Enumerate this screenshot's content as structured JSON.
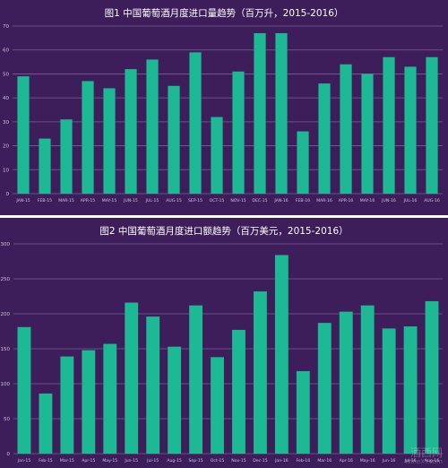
{
  "colors": {
    "background": "#3d1e5a",
    "bar": "#1db894",
    "grid": "#7a5f93",
    "tick_text": "#cfc4dd",
    "title_text": "#ffffff"
  },
  "watermark": {
    "text": "酒西网",
    "subtext": "WineXY.com"
  },
  "chart_data": [
    {
      "type": "bar",
      "title": "图1  中国葡萄酒月度进口量趋势（百万升，2015-2016）",
      "xlabel": "",
      "ylabel": "",
      "ylim": [
        0,
        70
      ],
      "yticks": [
        0,
        10,
        20,
        30,
        40,
        50,
        60,
        70
      ],
      "grid": true,
      "categories": [
        "JAN-15",
        "FEB-15",
        "MAR-15",
        "APR-15",
        "MAY-15",
        "JUN-15",
        "JUL-15",
        "AUG-15",
        "SEP-15",
        "OCT-15",
        "NOV-15",
        "DEC-15",
        "JAN-16",
        "FEB-16",
        "MAR-16",
        "APR-16",
        "MAY-16",
        "JUN-16",
        "JUL-16",
        "AUG-16"
      ],
      "values": [
        49,
        23,
        31,
        47,
        44,
        52,
        56,
        45,
        59,
        32,
        51,
        67,
        67,
        26,
        46,
        54,
        50,
        57,
        53,
        57
      ]
    },
    {
      "type": "bar",
      "title": "图2  中国葡萄酒月度进口额趋势（百万美元，2015-2016）",
      "xlabel": "",
      "ylabel": "",
      "ylim": [
        0,
        300
      ],
      "yticks": [
        0,
        50,
        100,
        150,
        200,
        250,
        300
      ],
      "grid": true,
      "categories": [
        "Jan-15",
        "Feb-15",
        "Mar-15",
        "Apr-15",
        "May-15",
        "Jun-15",
        "Jul-15",
        "Aug-15",
        "Sep-15",
        "Oct-15",
        "Nov-15",
        "Dec-15",
        "Jan-16",
        "Feb-16",
        "Mar-16",
        "Apr-16",
        "May-16",
        "Jun-16",
        "Jul-16",
        "Aug-16"
      ],
      "values": [
        181,
        86,
        139,
        148,
        157,
        216,
        196,
        153,
        212,
        138,
        177,
        232,
        284,
        118,
        187,
        203,
        212,
        179,
        182,
        218
      ]
    }
  ]
}
